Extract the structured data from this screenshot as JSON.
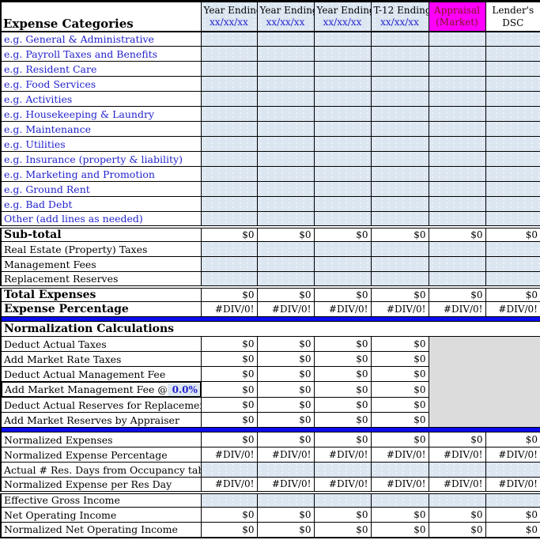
{
  "colors": {
    "cell_fill_blue": "#DCE6F1",
    "label_text_blue": "#2323CC",
    "appraisal_fill": "#FF00FF",
    "appraisal_text": "#7E1B1B",
    "divider_bar_blue": "#0B0BEE",
    "disabled_gray": "#DCDCDC",
    "grid_black": "#000000"
  },
  "table": {
    "header": {
      "label": "Expense Categories",
      "columns": [
        {
          "line1": "Year Ending",
          "line2": "xx/xx/xx",
          "style": "period"
        },
        {
          "line1": "Year Ending",
          "line2": "xx/xx/xx",
          "style": "period"
        },
        {
          "line1": "Year Ending",
          "line2": "xx/xx/xx",
          "style": "period"
        },
        {
          "line1": "T-12 Ending",
          "line2": "xx/xx/xx",
          "style": "period"
        },
        {
          "line1": "Appraisal",
          "line2": "(Market)",
          "style": "appraisal"
        },
        {
          "line1": "Lender's",
          "line2": "DSC",
          "style": "plain"
        }
      ]
    },
    "rows": [
      {
        "variant": "example",
        "label": "e.g. General & Administrative"
      },
      {
        "variant": "example",
        "label": "e.g. Payroll Taxes and Benefits"
      },
      {
        "variant": "example",
        "label": "e.g. Resident Care"
      },
      {
        "variant": "example",
        "label": "e.g. Food Services"
      },
      {
        "variant": "example",
        "label": "e.g. Activities"
      },
      {
        "variant": "example",
        "label": "e.g. Housekeeping & Laundry"
      },
      {
        "variant": "example",
        "label": "e.g. Maintenance"
      },
      {
        "variant": "example",
        "label": "e.g. Utilities"
      },
      {
        "variant": "example",
        "label": "e.g. Insurance (property & liability)"
      },
      {
        "variant": "example",
        "label": "e.g. Marketing and Promotion"
      },
      {
        "variant": "example",
        "label": "e.g. Ground Rent"
      },
      {
        "variant": "example",
        "label": "e.g. Bad Debt"
      },
      {
        "variant": "example",
        "label": "Other (add lines as needed)"
      },
      {
        "variant": "total",
        "label": "Sub-total",
        "border_top": "double",
        "values": [
          "$0",
          "$0",
          "$0",
          "$0",
          "$0",
          "$0"
        ]
      },
      {
        "variant": "blank-blue",
        "label": "Real Estate (Property) Taxes"
      },
      {
        "variant": "blank-blue",
        "label": "Management Fees"
      },
      {
        "variant": "blank-blue",
        "label": "Replacement Reserves"
      },
      {
        "variant": "total",
        "label": "Total Expenses",
        "border_top": "double",
        "values": [
          "$0",
          "$0",
          "$0",
          "$0",
          "$0",
          "$0"
        ]
      },
      {
        "variant": "total",
        "label": "Expense Percentage",
        "values": [
          "#DIV/0!",
          "#DIV/0!",
          "#DIV/0!",
          "#DIV/0!",
          "#DIV/0!",
          "#DIV/0!"
        ]
      },
      {
        "variant": "bluebar"
      },
      {
        "variant": "section",
        "label": "Normalization Calculations"
      },
      {
        "variant": "norm",
        "label": "Deduct Actual Taxes",
        "gray_start": true,
        "values": [
          "$0",
          "$0",
          "$0",
          "$0"
        ]
      },
      {
        "variant": "norm",
        "label": "Add Market Rate Taxes",
        "values": [
          "$0",
          "$0",
          "$0",
          "$0"
        ]
      },
      {
        "variant": "norm",
        "label": "Deduct Actual Management Fee",
        "values": [
          "$0",
          "$0",
          "$0",
          "$0"
        ]
      },
      {
        "variant": "norm",
        "label": "Add Market Management Fee @",
        "chip": "0.0%",
        "values": [
          "$0",
          "$0",
          "$0",
          "$0"
        ]
      },
      {
        "variant": "norm",
        "label": "Deduct Actual Reserves for Replacement",
        "values": [
          "$0",
          "$0",
          "$0",
          "$0"
        ]
      },
      {
        "variant": "norm",
        "label": "Add Market Reserves by Appraiser",
        "values": [
          "$0",
          "$0",
          "$0",
          "$0"
        ]
      },
      {
        "variant": "bluebar"
      },
      {
        "variant": "value",
        "label": "Normalized Expenses",
        "values": [
          "$0",
          "$0",
          "$0",
          "$0",
          "$0",
          "$0"
        ]
      },
      {
        "variant": "value",
        "label": "Normalized Expense Percentage",
        "values": [
          "#DIV/0!",
          "#DIV/0!",
          "#DIV/0!",
          "#DIV/0!",
          "#DIV/0!",
          "#DIV/0!"
        ]
      },
      {
        "variant": "blank-blue",
        "label": "Actual # Res. Days from Occupancy table"
      },
      {
        "variant": "value",
        "label": "Normalized Expense per Res Day",
        "border_bottom": "double",
        "values": [
          "#DIV/0!",
          "#DIV/0!",
          "#DIV/0!",
          "#DIV/0!",
          "#DIV/0!",
          "#DIV/0!"
        ]
      },
      {
        "variant": "blank-blue",
        "label": "Effective Gross Income"
      },
      {
        "variant": "value",
        "label": "Net Operating Income",
        "values": [
          "$0",
          "$0",
          "$0",
          "$0",
          "$0",
          "$0"
        ]
      },
      {
        "variant": "value",
        "label": "Normalized Net Operating Income",
        "values": [
          "$0",
          "$0",
          "$0",
          "$0",
          "$0",
          "$0"
        ]
      }
    ]
  }
}
